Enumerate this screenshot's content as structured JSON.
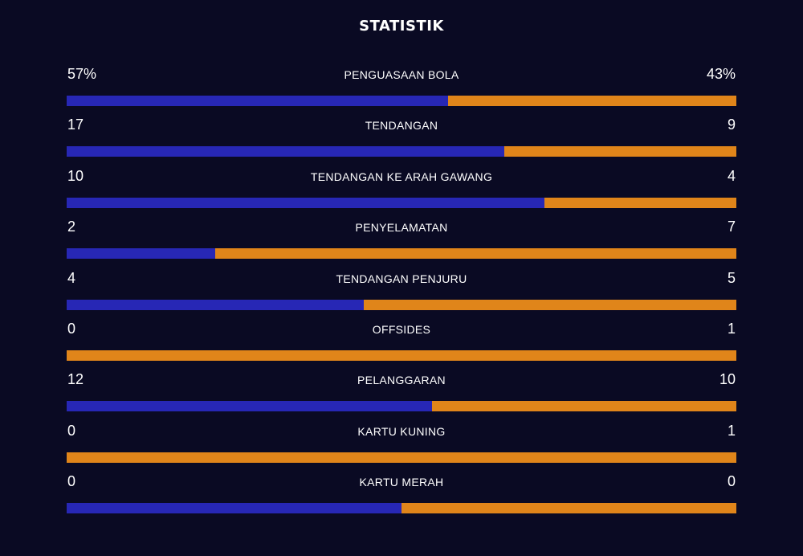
{
  "title": "STATISTIK",
  "colors": {
    "home": "#2727b5",
    "away": "#e0851a",
    "background": "#0a0a23"
  },
  "stats": [
    {
      "label": "PENGUASAAN BOLA",
      "home": "57%",
      "away": "43%",
      "home_share": 0.57
    },
    {
      "label": "TENDANGAN",
      "home": "17",
      "away": "9",
      "home_share": 0.654
    },
    {
      "label": "TENDANGAN KE ARAH GAWANG",
      "home": "10",
      "away": "4",
      "home_share": 0.714
    },
    {
      "label": "PENYELAMATAN",
      "home": "2",
      "away": "7",
      "home_share": 0.222
    },
    {
      "label": "TENDANGAN PENJURU",
      "home": "4",
      "away": "5",
      "home_share": 0.444
    },
    {
      "label": "OFFSIDES",
      "home": "0",
      "away": "1",
      "home_share": 0
    },
    {
      "label": "PELANGGARAN",
      "home": "12",
      "away": "10",
      "home_share": 0.545
    },
    {
      "label": "KARTU KUNING",
      "home": "0",
      "away": "1",
      "home_share": 0
    },
    {
      "label": "KARTU MERAH",
      "home": "0",
      "away": "0",
      "home_share": 0.5
    }
  ]
}
